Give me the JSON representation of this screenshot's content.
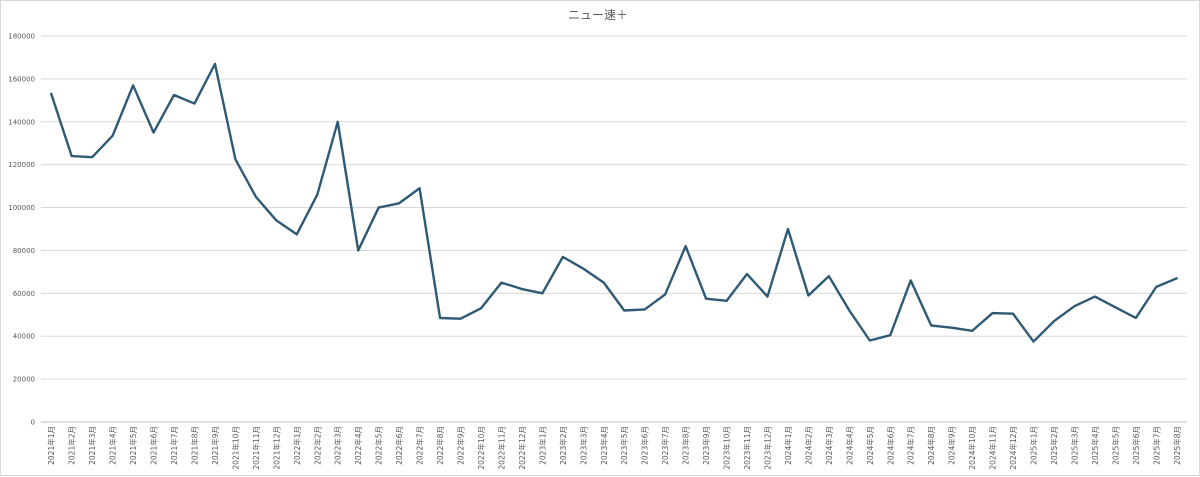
{
  "colors": {
    "series": "#2f5a75",
    "grid": "#d9d9d9",
    "axis": "#bfbfbf",
    "text": "#595959"
  },
  "chart_data": {
    "type": "line",
    "title": "ニュー速＋",
    "xlabel": "",
    "ylabel": "",
    "ylim": [
      0,
      180000
    ],
    "yticks": [
      0,
      20000,
      40000,
      60000,
      80000,
      100000,
      120000,
      140000,
      160000,
      180000
    ],
    "grid": true,
    "legend": "none",
    "categories": [
      "2021年1月",
      "2021年2月",
      "2021年3月",
      "2021年4月",
      "2021年5月",
      "2021年6月",
      "2021年7月",
      "2021年8月",
      "2021年9月",
      "2021年10月",
      "2021年11月",
      "2021年12月",
      "2022年1月",
      "2022年2月",
      "2022年3月",
      "2022年4月",
      "2022年5月",
      "2022年6月",
      "2022年7月",
      "2022年8月",
      "2022年9月",
      "2022年10月",
      "2022年11月",
      "2022年12月",
      "2023年1月",
      "2023年2月",
      "2023年3月",
      "2023年4月",
      "2023年5月",
      "2023年6月",
      "2023年7月",
      "2023年8月",
      "2023年9月",
      "2023年10月",
      "2023年11月",
      "2023年12月",
      "2024年1月",
      "2024年2月",
      "2024年3月",
      "2024年4月",
      "2024年5月",
      "2024年6月",
      "2024年7月",
      "2024年8月",
      "2024年9月",
      "2024年10月",
      "2024年11月",
      "2024年12月",
      "2025年1月",
      "2025年2月",
      "2025年3月",
      "2025年4月",
      "2025年5月",
      "2025年6月",
      "2025年7月",
      "2025年8月"
    ],
    "series": [
      {
        "values": [
          153000,
          124000,
          123500,
          133500,
          157000,
          135000,
          152500,
          148500,
          167000,
          122500,
          105000,
          94000,
          87500,
          106000,
          140000,
          80000,
          100000,
          102000,
          109000,
          48500,
          48200,
          53000,
          65000,
          62000,
          60000,
          77000,
          71500,
          65000,
          52000,
          52500,
          59500,
          82000,
          57500,
          56500,
          69000,
          58500,
          90000,
          59000,
          68000,
          52000,
          38000,
          40500,
          66000,
          45000,
          44000,
          42500,
          50800,
          50500,
          37500,
          47000,
          54000,
          58500,
          53500,
          48500,
          63000,
          67000
        ]
      }
    ]
  }
}
